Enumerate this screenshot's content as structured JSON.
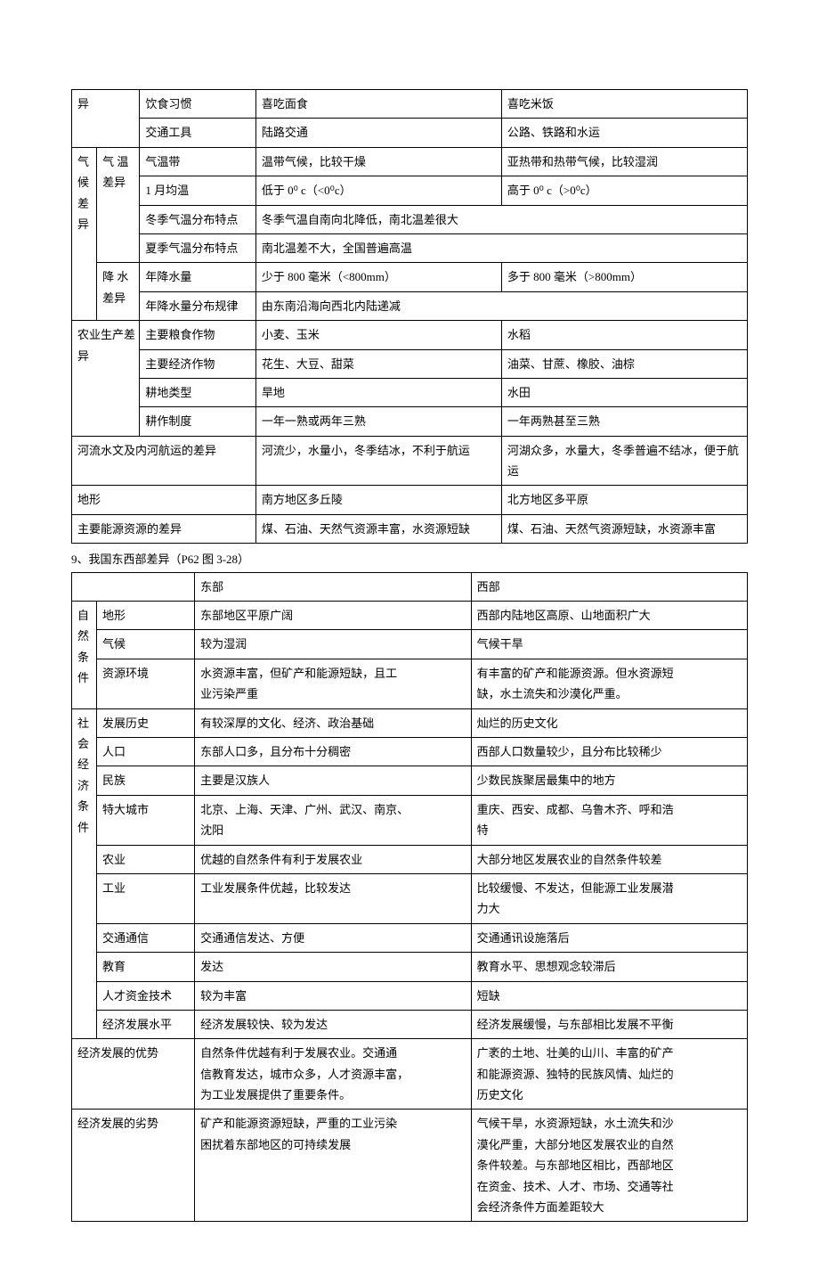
{
  "table1": {
    "colWidths": [
      "22px",
      "38px",
      "95px",
      "200px",
      "200px"
    ],
    "rows": [
      [
        "异",
        "",
        "饮食习惯",
        "喜吃面食",
        "喜吃米饭"
      ],
      [
        "",
        "",
        "交通工具",
        "陆路交通",
        "公路、铁路和水运"
      ],
      [
        "气",
        "气 温",
        "气温带",
        "温带气候，比较干燥",
        "亚热带和热带气候，比较湿润"
      ],
      [
        "候",
        "差异",
        "1 月均温",
        "低于 0⁰ c（<0⁰c）",
        "高于 0⁰ c（>0⁰c）"
      ],
      [
        "差",
        "",
        "冬季气温分布特点",
        "冬季气温自南向北降低，南北温差很大",
        ""
      ],
      [
        "异",
        "",
        "夏季气温分布特点",
        "南北温差不大，全国普遍高温",
        ""
      ],
      [
        "",
        "降 水",
        "年降水量",
        "少于 800 毫米（<800mm）",
        "多于 800 毫米（>800mm）"
      ],
      [
        "",
        "差异",
        "年降水量分布规律",
        "由东南沿海向西北内陆递减",
        ""
      ],
      [
        "农业生产差",
        "",
        "主要粮食作物",
        "小麦、玉米",
        "水稻"
      ],
      [
        "异",
        "",
        "主要经济作物",
        "花生、大豆、甜菜",
        "油菜、甘蔗、橡胶、油棕"
      ],
      [
        "",
        "",
        "耕地类型",
        "旱地",
        "水田"
      ],
      [
        "",
        "",
        "耕作制度",
        "一年一熟或两年三熟",
        "一年两熟甚至三熟"
      ],
      [
        "河流水文及内河航运的差异",
        "",
        "",
        "河流少，水量小，冬季结冰，不利于航运",
        "河湖众多，水量大，冬季普遍不结冰，便于航运"
      ],
      [
        "地形",
        "",
        "",
        "南方地区多丘陵",
        "北方地区多平原"
      ],
      [
        "主要能源资源的差异",
        "",
        "",
        "煤、石油、天然气资源丰富，水资源短缺",
        "煤、石油、天然气资源短缺，水资源丰富"
      ]
    ],
    "spans": {
      "r0c0": {
        "colspan": 2
      },
      "r1c0": {
        "colspan": 2
      },
      "r4c3": {
        "colspan": 2
      },
      "r5c3": {
        "colspan": 2
      },
      "r7c3": {
        "colspan": 2
      },
      "r8c0": {
        "colspan": 2
      },
      "r9c0": {
        "colspan": 2
      },
      "r10c0": {
        "colspan": 2
      },
      "r11c0": {
        "colspan": 2
      },
      "r12c0": {
        "colspan": 3
      },
      "r13c0": {
        "colspan": 3
      },
      "r14c0": {
        "colspan": 3
      }
    }
  },
  "sectionTitle": "9、我国东西部差异（P62 图 3-28）",
  "table2": {
    "colWidths": [
      "22px",
      "90px",
      "240px",
      "240px"
    ],
    "rows": [
      [
        "",
        "",
        "东部",
        "西部"
      ],
      [
        "自",
        "地形",
        "东部地区平原广阔",
        "西部内陆地区高原、山地面积广大"
      ],
      [
        "然",
        "气候",
        "较为湿润",
        "气候干旱"
      ],
      [
        "条",
        "资源环境",
        "水资源丰富，但矿产和能源短缺，且工",
        "有丰富的矿产和能源资源。但水资源短"
      ],
      [
        "件",
        "",
        "业污染严重",
        "缺，水土流失和沙漠化严重。"
      ],
      [
        "社",
        "发展历史",
        "有较深厚的文化、经济、政治基础",
        "灿烂的历史文化"
      ],
      [
        "会",
        "人口",
        "东部人口多，且分布十分稠密",
        "西部人口数量较少，且分布比较稀少"
      ],
      [
        "经",
        "民族",
        "主要是汉族人",
        "少数民族聚居最集中的地方"
      ],
      [
        "济",
        "特大城市",
        "北京、上海、天津、广州、武汉、南京、",
        "重庆、西安、成都、乌鲁木齐、呼和浩"
      ],
      [
        "条",
        "",
        "沈阳",
        "特"
      ],
      [
        "件",
        "农业",
        "优越的自然条件有利于发展农业",
        "大部分地区发展农业的自然条件较差"
      ],
      [
        "",
        "工业",
        "工业发展条件优越，比较发达",
        "比较缓慢、不发达，但能源工业发展潜"
      ],
      [
        "",
        "",
        "",
        "力大"
      ],
      [
        "",
        "交通通信",
        "交通通信发达、方便",
        "交通通讯设施落后"
      ],
      [
        "",
        "教育",
        "发达",
        "教育水平、思想观念较滞后"
      ],
      [
        "",
        "人才资金技术",
        "较为丰富",
        "短缺"
      ],
      [
        "",
        "经济发展水平",
        "经济发展较快、较为发达",
        "经济发展缓慢，与东部相比发展不平衡"
      ],
      [
        "经济发展的优势",
        "",
        "自然条件优越有利于发展农业。交通通",
        "广袤的土地、壮美的山川、丰富的矿产"
      ],
      [
        "",
        "",
        "信教育发达，城市众多，人才资源丰富，",
        "和能源资源、独特的民族风情、灿烂的"
      ],
      [
        "",
        "",
        "为工业发展提供了重要条件。",
        "历史文化"
      ],
      [
        "经济发展的劣势",
        "",
        "矿产和能源资源短缺，严重的工业污染",
        "气候干旱，水资源短缺，水土流失和沙"
      ],
      [
        "",
        "",
        "困扰着东部地区的可持续发展",
        "漠化严重，大部分地区发展农业的自然"
      ],
      [
        "",
        "",
        "",
        "条件较差。与东部地区相比，西部地区"
      ],
      [
        "",
        "",
        "",
        "在资金、技术、人才、市场、交通等社"
      ],
      [
        "",
        "",
        "",
        "会经济条件方面差距较大"
      ]
    ],
    "spans": {
      "r0c0": {
        "colspan": 2
      },
      "r17c0": {
        "colspan": 2
      },
      "r18c0": {
        "colspan": 2
      },
      "r19c0": {
        "colspan": 2
      },
      "r20c0": {
        "colspan": 2
      },
      "r21c0": {
        "colspan": 2
      },
      "r22c0": {
        "colspan": 2
      },
      "r23c0": {
        "colspan": 2
      },
      "r24c0": {
        "colspan": 2
      }
    },
    "noBottomBorder": [
      "r0",
      "r1",
      "r2",
      "r3",
      "r5",
      "r6",
      "r7",
      "r8",
      "r9",
      "r10",
      "r11",
      "r12",
      "r13",
      "r14",
      "r15",
      "r17",
      "r18",
      "r20",
      "r21",
      "r22",
      "r23"
    ],
    "verticalGroups": {
      "col0_r3r4": true,
      "col1_r3r4": true,
      "col0_r8r9": true,
      "col1_r8r9": true,
      "col0_r11r12": true,
      "col1_r11r12": true,
      "col0_r17r19": true,
      "col0_r20r24": true
    }
  }
}
